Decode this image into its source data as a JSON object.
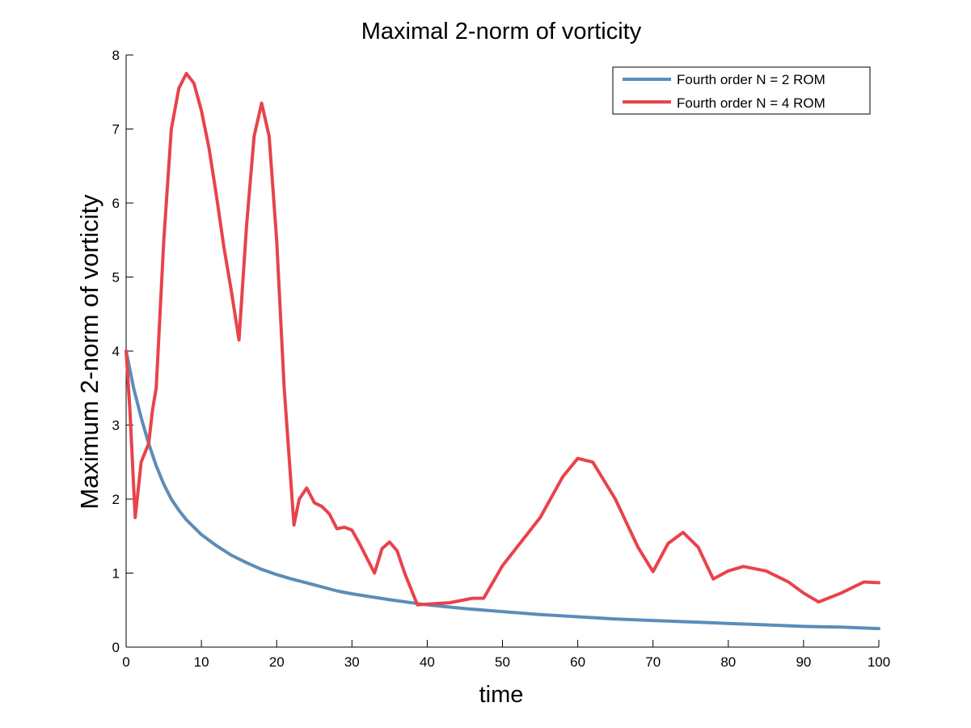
{
  "chart_data": {
    "type": "line",
    "title": "Maximal 2-norm of vorticity",
    "xlabel": "time",
    "ylabel": "Maximum 2-norm of vorticity",
    "xlim": [
      0,
      100
    ],
    "ylim": [
      0,
      8
    ],
    "xticks": [
      0,
      10,
      20,
      30,
      40,
      50,
      60,
      70,
      80,
      90,
      100
    ],
    "yticks": [
      0,
      1,
      2,
      3,
      4,
      5,
      6,
      7,
      8
    ],
    "xtick_labels": [
      "0",
      "10",
      "20",
      "30",
      "40",
      "50",
      "60",
      "70",
      "80",
      "90",
      "100"
    ],
    "ytick_labels": [
      "0",
      "1",
      "2",
      "3",
      "4",
      "5",
      "6",
      "7",
      "8"
    ],
    "grid": false,
    "legend_position": "top-right",
    "series": [
      {
        "name": "Fourth order N = 2 ROM",
        "color": "#5b8db8",
        "x": [
          0,
          1,
          2,
          3,
          4,
          5,
          6,
          7,
          8,
          10,
          12,
          14,
          16,
          18,
          20,
          22,
          25,
          28,
          30,
          35,
          40,
          45,
          50,
          55,
          60,
          65,
          70,
          75,
          80,
          85,
          90,
          95,
          100
        ],
        "y": [
          4.0,
          3.5,
          3.1,
          2.75,
          2.45,
          2.2,
          2.0,
          1.85,
          1.72,
          1.52,
          1.37,
          1.24,
          1.14,
          1.05,
          0.98,
          0.92,
          0.84,
          0.76,
          0.72,
          0.64,
          0.57,
          0.52,
          0.48,
          0.44,
          0.41,
          0.38,
          0.36,
          0.34,
          0.32,
          0.3,
          0.28,
          0.27,
          0.25
        ]
      },
      {
        "name": "Fourth order N = 4 ROM",
        "color": "#e8434b",
        "x": [
          0,
          0.5,
          1.2,
          2,
          3,
          3.5,
          4,
          5,
          6,
          7,
          8,
          9,
          10,
          11,
          12,
          13,
          14,
          15,
          16,
          17,
          18,
          19,
          20,
          21,
          22.3,
          23,
          24,
          25,
          26,
          27,
          28,
          29,
          30,
          31,
          33,
          34,
          35,
          36,
          37,
          38.7,
          40,
          43,
          46,
          47.5,
          50,
          55,
          58,
          60,
          62,
          65,
          68,
          70,
          72,
          74,
          76,
          78,
          80,
          82,
          85,
          88,
          90,
          92,
          95,
          98,
          100
        ],
        "y": [
          4.0,
          3.2,
          1.75,
          2.5,
          2.75,
          3.2,
          3.5,
          5.5,
          7.0,
          7.55,
          7.75,
          7.62,
          7.25,
          6.75,
          6.1,
          5.4,
          4.8,
          4.15,
          5.7,
          6.9,
          7.35,
          6.9,
          5.5,
          3.5,
          1.65,
          2.0,
          2.15,
          1.95,
          1.9,
          1.8,
          1.6,
          1.62,
          1.58,
          1.4,
          1.0,
          1.33,
          1.42,
          1.3,
          1.0,
          0.57,
          0.58,
          0.6,
          0.66,
          0.66,
          1.1,
          1.75,
          2.3,
          2.55,
          2.5,
          2.0,
          1.35,
          1.02,
          1.4,
          1.55,
          1.35,
          0.92,
          1.03,
          1.09,
          1.03,
          0.88,
          0.73,
          0.61,
          0.73,
          0.88,
          0.87
        ]
      }
    ]
  }
}
